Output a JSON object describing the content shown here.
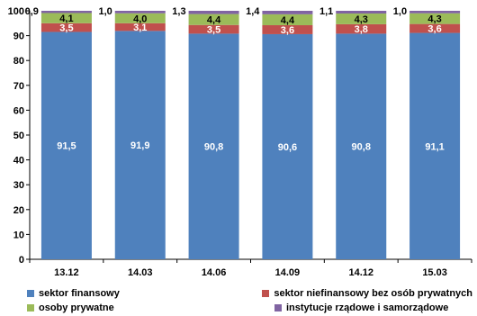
{
  "chart_data": {
    "type": "bar",
    "stacked": true,
    "categories": [
      "13.12",
      "14.03",
      "14.06",
      "14.09",
      "14.12",
      "15.03"
    ],
    "series": [
      {
        "name": "sektor finansowy",
        "color": "#4F81BD",
        "values": [
          91.5,
          91.9,
          90.8,
          90.6,
          90.8,
          91.1
        ]
      },
      {
        "name": "sektor niefinansowy bez osób prywatnych",
        "color": "#C0504D",
        "values": [
          3.5,
          3.1,
          3.5,
          3.6,
          3.8,
          3.6
        ]
      },
      {
        "name": "osoby prywatne",
        "color": "#9BBB59",
        "values": [
          4.1,
          4.0,
          4.4,
          4.4,
          4.3,
          4.3
        ]
      },
      {
        "name": "instytucje rządowe i samorządowe",
        "color": "#8064A2",
        "values": [
          0.9,
          1.0,
          1.3,
          1.4,
          1.1,
          1.0
        ]
      }
    ],
    "yticks": [
      "0",
      "10",
      "20",
      "30",
      "40",
      "50",
      "60",
      "70",
      "80",
      "90",
      "100"
    ],
    "ylim": [
      0,
      100
    ],
    "grid": false,
    "legend_position": "bottom"
  }
}
